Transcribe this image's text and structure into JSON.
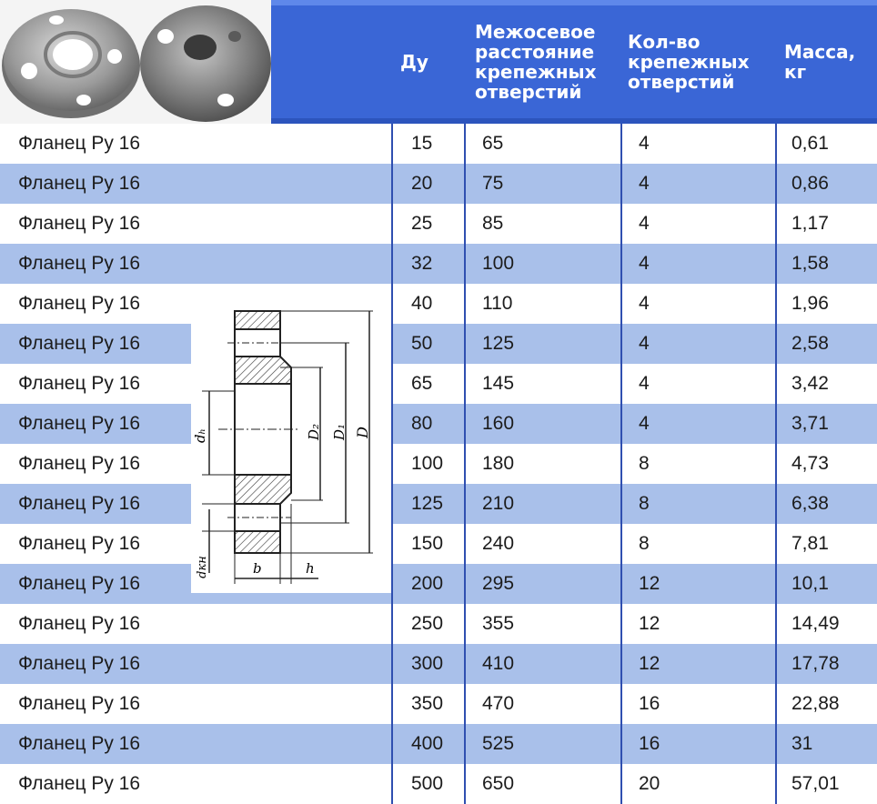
{
  "header": {
    "du": "Ду",
    "spacing": "Межосевое\nрасстояние\nкрепежных\nотверстий",
    "count": "Кол-во\nкрепежных\nотверстий",
    "mass": "Масса,\nкг"
  },
  "diagram_labels": {
    "db": "dₕ",
    "dkn": "dкн",
    "D2": "D₂",
    "D1": "D₁",
    "D": "D",
    "b": "b",
    "h": "h"
  },
  "rows": [
    {
      "name": "Фланец Ру 16",
      "du": "15",
      "spacing": "65",
      "count": "4",
      "mass": "0,61"
    },
    {
      "name": "Фланец Ру 16",
      "du": "20",
      "spacing": "75",
      "count": "4",
      "mass": "0,86"
    },
    {
      "name": "Фланец Ру 16",
      "du": "25",
      "spacing": "85",
      "count": "4",
      "mass": "1,17"
    },
    {
      "name": "Фланец Ру 16",
      "du": "32",
      "spacing": "100",
      "count": "4",
      "mass": "1,58"
    },
    {
      "name": "Фланец Ру 16",
      "du": "40",
      "spacing": "110",
      "count": "4",
      "mass": "1,96"
    },
    {
      "name": "Фланец Ру 16",
      "du": "50",
      "spacing": "125",
      "count": "4",
      "mass": "2,58"
    },
    {
      "name": "Фланец Ру 16",
      "du": "65",
      "spacing": "145",
      "count": "4",
      "mass": "3,42"
    },
    {
      "name": "Фланец Ру 16",
      "du": "80",
      "spacing": "160",
      "count": "4",
      "mass": "3,71"
    },
    {
      "name": "Фланец Ру 16",
      "du": "100",
      "spacing": "180",
      "count": "8",
      "mass": "4,73"
    },
    {
      "name": "Фланец Ру 16",
      "du": "125",
      "spacing": "210",
      "count": "8",
      "mass": "6,38"
    },
    {
      "name": "Фланец Ру 16",
      "du": "150",
      "spacing": "240",
      "count": "8",
      "mass": "7,81"
    },
    {
      "name": "Фланец Ру 16",
      "du": "200",
      "spacing": "295",
      "count": "12",
      "mass": "10,1"
    },
    {
      "name": "Фланец Ру 16",
      "du": "250",
      "spacing": "355",
      "count": "12",
      "mass": "14,49"
    },
    {
      "name": "Фланец Ру 16",
      "du": "300",
      "spacing": "410",
      "count": "12",
      "mass": "17,78"
    },
    {
      "name": "Фланец Ру 16",
      "du": "350",
      "spacing": "470",
      "count": "16",
      "mass": "22,88"
    },
    {
      "name": "Фланец Ру 16",
      "du": "400",
      "spacing": "525",
      "count": "16",
      "mass": "31"
    },
    {
      "name": "Фланец Ру 16",
      "du": "500",
      "spacing": "650",
      "count": "20",
      "mass": "57,01"
    }
  ],
  "colors": {
    "header_blue": "#3a66d6",
    "row_blue": "#a9c0ea",
    "divider": "#2f4fb0"
  }
}
